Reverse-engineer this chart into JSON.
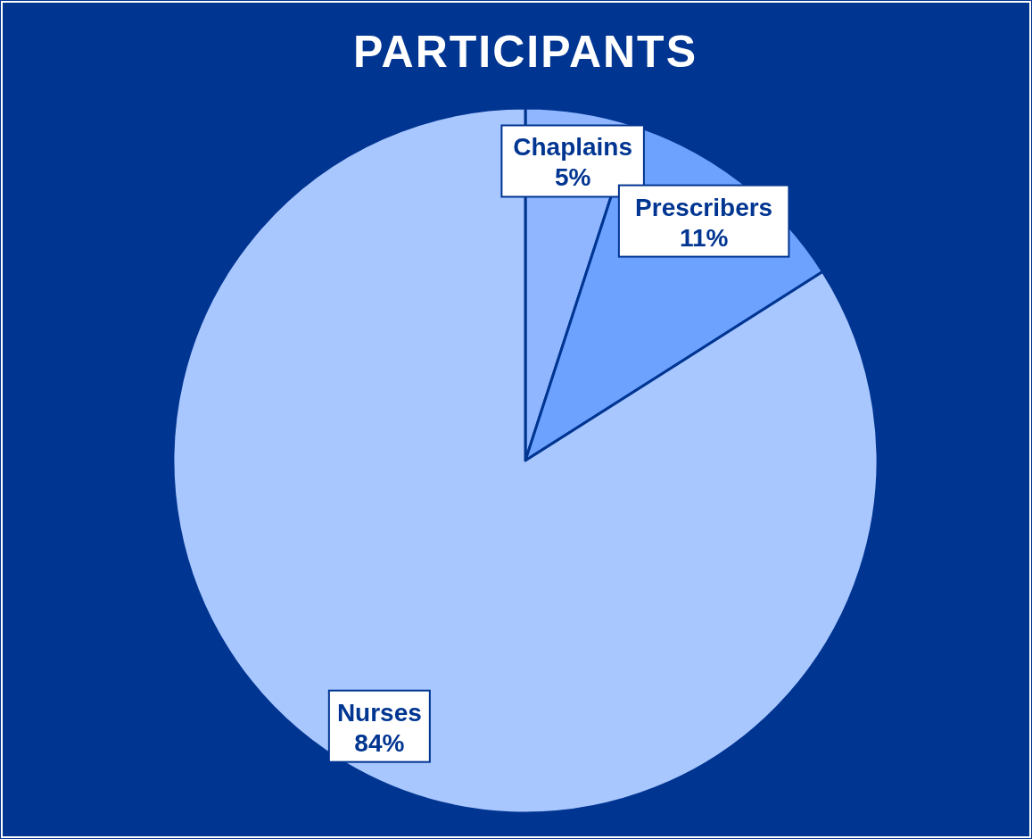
{
  "chart_data": {
    "type": "pie",
    "title": "PARTICIPANTS",
    "categories": [
      "Chaplains",
      "Prescribers",
      "Nurses"
    ],
    "values": [
      5,
      11,
      84
    ],
    "colors": [
      "#8fb6ff",
      "#6ea2ff",
      "#a9c7ff"
    ],
    "value_labels": [
      "5%",
      "11%",
      "84%"
    ]
  }
}
